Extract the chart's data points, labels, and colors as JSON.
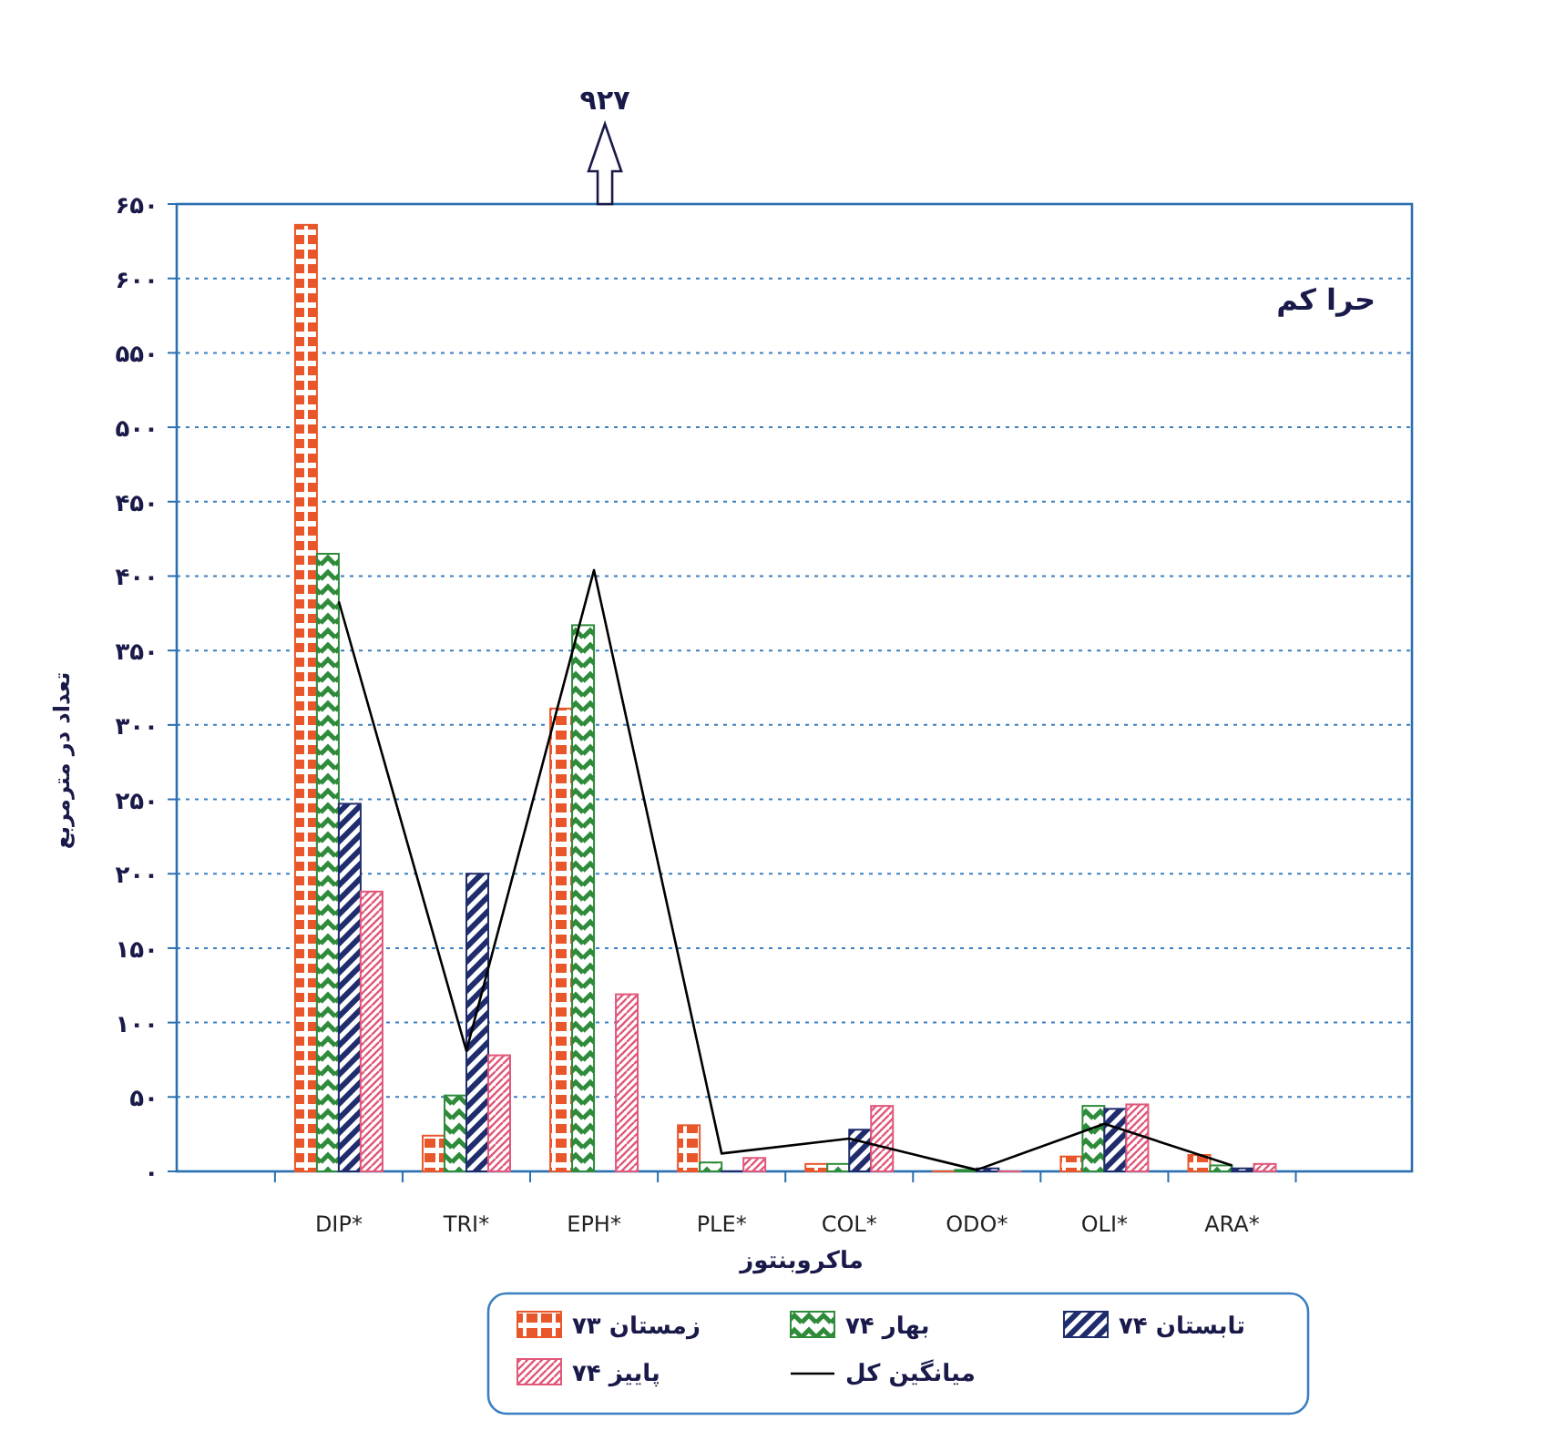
{
  "chart_data": {
    "type": "bar",
    "xlabel": "ماکروبنتوز",
    "ylabel": "تعداد در مترمربع",
    "annotations": [
      "حرا کم",
      "۹۲۷"
    ],
    "categories": [
      "DIP*",
      "TRI*",
      "EPH*",
      "PLE*",
      "COL*",
      "ODO*",
      "OLI*",
      "ARA*"
    ],
    "ylim": [
      0,
      650
    ],
    "yticks": [
      {
        "value": 0,
        "label": "۰"
      },
      {
        "value": 50,
        "label": "۵۰"
      },
      {
        "value": 100,
        "label": "۱۰۰"
      },
      {
        "value": 150,
        "label": "۱۵۰"
      },
      {
        "value": 200,
        "label": "۲۰۰"
      },
      {
        "value": 250,
        "label": "۲۵۰"
      },
      {
        "value": 300,
        "label": "۳۰۰"
      },
      {
        "value": 350,
        "label": "۳۵۰"
      },
      {
        "value": 400,
        "label": "۴۰۰"
      },
      {
        "value": 450,
        "label": "۴۵۰"
      },
      {
        "value": 500,
        "label": "۵۰۰"
      },
      {
        "value": 550,
        "label": "۵۵۰"
      },
      {
        "value": 600,
        "label": "۶۰۰"
      },
      {
        "value": 650,
        "label": "۶۵۰"
      }
    ],
    "grid": "y",
    "legend": "bottom",
    "series": [
      {
        "name": "زمستان ۷۳",
        "color": "#e8562a",
        "values": [
          636,
          24,
          311,
          31,
          5,
          0,
          10,
          11
        ]
      },
      {
        "name": "بهار ۷۴",
        "color": "#2e8b3a",
        "values": [
          415,
          51,
          367,
          6,
          5,
          1,
          44,
          4
        ]
      },
      {
        "name": "تابستان ۷۴",
        "color": "#1f2d6e",
        "values": [
          247,
          200,
          null,
          0,
          28,
          2,
          42,
          2
        ]
      },
      {
        "name": "پاییز ۷۴",
        "color": "#e0577a",
        "values": [
          188,
          78,
          119,
          9,
          44,
          0,
          45,
          5
        ]
      },
      {
        "name": "میانگین کل",
        "type": "line",
        "color": "#000000",
        "marker": "none",
        "line_style": "solid",
        "values": [
          383,
          81,
          404,
          12,
          22,
          1,
          32,
          4
        ]
      }
    ]
  }
}
